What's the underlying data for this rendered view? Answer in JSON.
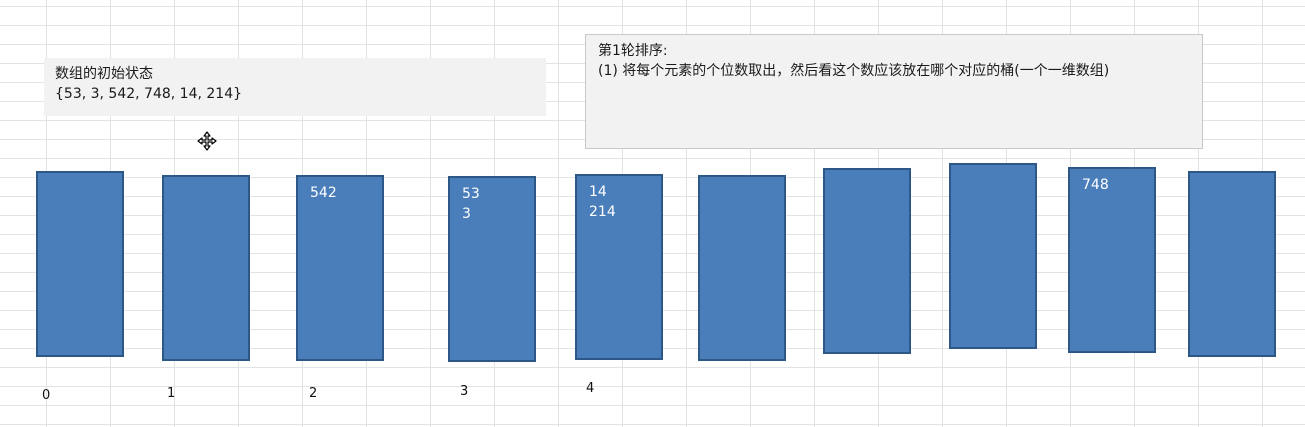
{
  "initial_box": {
    "title": "数组的初始状态",
    "array": "{53, 3, 542, 748, 14, 214}"
  },
  "round_box": {
    "title": "第1轮排序:",
    "step": "(1) 将每个元素的个位数取出，然后看这个数应该放在哪个对应的桶(一个一维数组)"
  },
  "buckets": [
    {
      "values": [],
      "label": "0"
    },
    {
      "values": [],
      "label": "1"
    },
    {
      "values": [
        "542"
      ],
      "label": "2"
    },
    {
      "values": [
        "53",
        "3"
      ],
      "label": "3"
    },
    {
      "values": [
        "14",
        "214"
      ],
      "label": "4"
    },
    {
      "values": [],
      "label": ""
    },
    {
      "values": [],
      "label": ""
    },
    {
      "values": [],
      "label": ""
    },
    {
      "values": [
        "748"
      ],
      "label": ""
    },
    {
      "values": [],
      "label": ""
    }
  ],
  "colors": {
    "bucket_fill": "#4a7ebb",
    "bucket_border": "#2c5787",
    "textbox_fill": "#f2f2f2"
  },
  "icons": {
    "cursor": "move-cursor-icon"
  }
}
